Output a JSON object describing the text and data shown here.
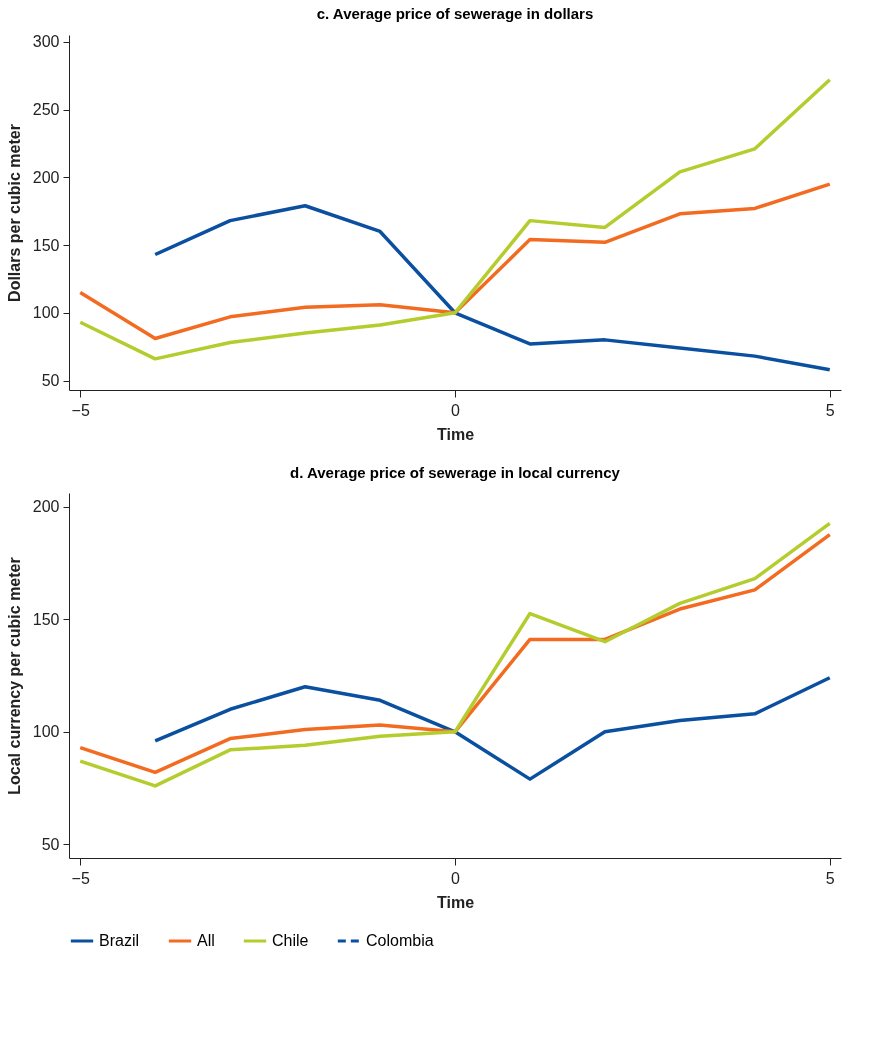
{
  "chart_data": [
    {
      "type": "line",
      "title": "c. Average price of sewerage in dollars",
      "xlabel": "Time",
      "ylabel": "Dollars per cubic meter",
      "x": [
        -5,
        -4,
        -3,
        -2,
        -1,
        0,
        1,
        2,
        3,
        4,
        5
      ],
      "xlim": [
        -5.15,
        5.15
      ],
      "xticks": [
        {
          "value": -5,
          "label": "−5"
        },
        {
          "value": 0,
          "label": "0"
        },
        {
          "value": 5,
          "label": "5"
        }
      ],
      "ylim": [
        43,
        305
      ],
      "yticks": [
        50,
        100,
        150,
        200,
        250,
        300
      ],
      "grid": false,
      "line_style": "solid",
      "series": [
        {
          "color": "#0a4fa0",
          "values": [
            null,
            143,
            168,
            179,
            160,
            100,
            77,
            80,
            74,
            68,
            58
          ]
        },
        {
          "color": "#f26b21",
          "values": [
            115,
            81,
            97,
            104,
            106,
            100,
            154,
            152,
            173,
            177,
            195
          ]
        },
        {
          "color": "#b5cc2e",
          "values": [
            93,
            66,
            78,
            85,
            91,
            100,
            168,
            163,
            204,
            221,
            272
          ]
        }
      ]
    },
    {
      "type": "line",
      "title": "d. Average price of sewerage in local currency",
      "xlabel": "Time",
      "ylabel": "Local currency per cubic meter",
      "x": [
        -5,
        -4,
        -3,
        -2,
        -1,
        0,
        1,
        2,
        3,
        4,
        5
      ],
      "xlim": [
        -5.15,
        5.15
      ],
      "xticks": [
        {
          "value": -5,
          "label": "−5"
        },
        {
          "value": 0,
          "label": "0"
        },
        {
          "value": 5,
          "label": "5"
        }
      ],
      "ylim": [
        44,
        206
      ],
      "yticks": [
        50,
        100,
        150,
        200
      ],
      "grid": false,
      "legend": "bottom",
      "line_style": "solid",
      "series": [
        {
          "name": "Brazil",
          "color": "#0a4fa0",
          "values": [
            null,
            96,
            110,
            120,
            114,
            100,
            79,
            100,
            105,
            108,
            124
          ]
        },
        {
          "name": "All",
          "color": "#f26b21",
          "values": [
            93,
            82,
            97,
            101,
            103,
            100,
            141,
            141,
            154.5,
            163,
            187.5
          ]
        },
        {
          "name": "Chile",
          "color": "#b5cc2e",
          "values": [
            87,
            76,
            92,
            94,
            98,
            100,
            152.5,
            140,
            157,
            168,
            192.5
          ]
        },
        {
          "name": "Colombia",
          "color": "#0a4fa0",
          "line_style": "dashed",
          "values": [
            null,
            null,
            null,
            null,
            null,
            null,
            null,
            null,
            null,
            null,
            null
          ]
        }
      ]
    }
  ]
}
